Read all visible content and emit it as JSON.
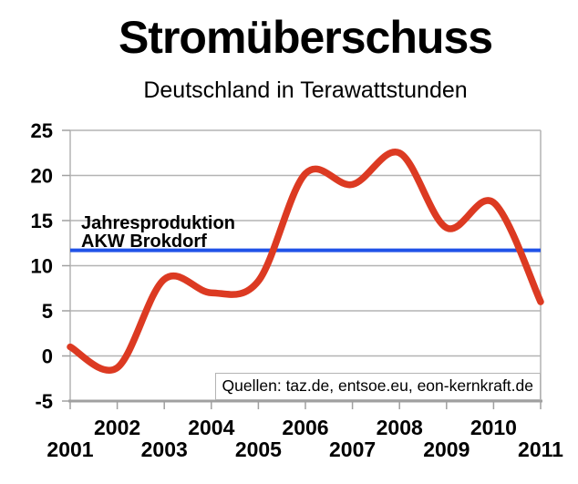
{
  "page": {
    "title": "Stromüberschuss",
    "subtitle": "Deutschland in Terawattstunden"
  },
  "annotation": {
    "line1": "Jahresproduktion",
    "line2": "AKW Brokdorf"
  },
  "source_note": "Quellen: taz.de, entsoe.eu, eon-kernkraft.de",
  "colors": {
    "series": "#dc3a22",
    "reference": "#2052e8",
    "grid": "#b3b3b3",
    "axis": "#a0a0a0",
    "text": "#000000",
    "background": "#ffffff"
  },
  "chart_data": {
    "type": "line",
    "title": "Stromüberschuss",
    "subtitle": "Deutschland in Terawattstunden",
    "x": [
      2001,
      2002,
      2003,
      2004,
      2005,
      2006,
      2007,
      2008,
      2009,
      2010,
      2011
    ],
    "series": [
      {
        "name": "Stromüberschuss Deutschland (TWh)",
        "color": "#dc3a22",
        "smooth": true,
        "values": [
          1.0,
          -1.3,
          8.5,
          7.0,
          8.3,
          20.2,
          19.0,
          22.5,
          14.2,
          17.0,
          6.0
        ]
      }
    ],
    "reference_line": {
      "label": "Jahresproduktion AKW Brokdorf",
      "value": 11.7,
      "color": "#2052e8"
    },
    "ylim": [
      -5,
      25
    ],
    "yticks": [
      25,
      20,
      15,
      10,
      5,
      0,
      -5
    ],
    "xticks_row_upper": [
      2002,
      2004,
      2006,
      2008,
      2010
    ],
    "xticks_row_lower": [
      2001,
      2003,
      2005,
      2007,
      2009,
      2011
    ],
    "xlabel": "",
    "ylabel": "",
    "grid": true,
    "legend": "none",
    "source": "Quellen: taz.de, entsoe.eu, eon-kernkraft.de"
  }
}
